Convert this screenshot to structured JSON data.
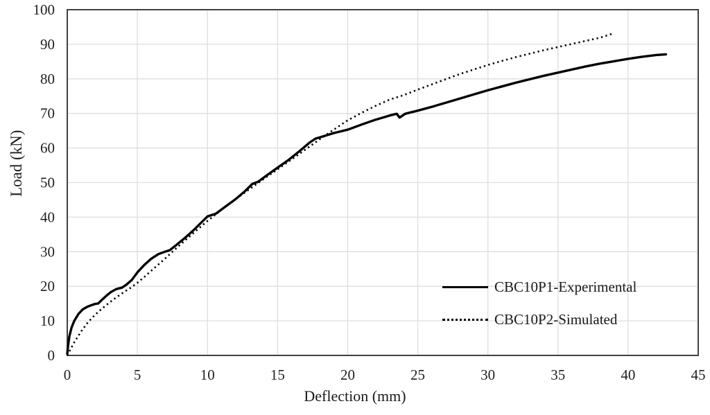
{
  "chart_data": {
    "type": "line",
    "title": "",
    "xlabel": "Deflection (mm)",
    "ylabel": "Load (kN)",
    "xlim": [
      0,
      45
    ],
    "ylim": [
      0,
      100
    ],
    "x_ticks": [
      0,
      5,
      10,
      15,
      20,
      25,
      30,
      35,
      40,
      45
    ],
    "y_ticks": [
      0,
      10,
      20,
      30,
      40,
      50,
      60,
      70,
      80,
      90,
      100
    ],
    "grid": true,
    "legend_position": "inside-lower-right",
    "series": [
      {
        "name": "CBC10P1-Experimental",
        "line": "solid",
        "color": "#000000",
        "points": [
          [
            0,
            0.5
          ],
          [
            0.05,
            2.5
          ],
          [
            0.15,
            5.5
          ],
          [
            0.3,
            8
          ],
          [
            0.5,
            10
          ],
          [
            0.8,
            12
          ],
          [
            1.1,
            13.3
          ],
          [
            1.4,
            14
          ],
          [
            1.7,
            14.5
          ],
          [
            2.0,
            14.9
          ],
          [
            2.2,
            15.0
          ],
          [
            2.5,
            16.2
          ],
          [
            2.8,
            17.3
          ],
          [
            3.1,
            18.3
          ],
          [
            3.5,
            19.2
          ],
          [
            3.9,
            19.6
          ],
          [
            4.2,
            20.4
          ],
          [
            4.6,
            21.8
          ],
          [
            5.0,
            24.0
          ],
          [
            5.5,
            26.2
          ],
          [
            6.0,
            28.0
          ],
          [
            6.5,
            29.3
          ],
          [
            6.9,
            29.9
          ],
          [
            7.3,
            30.4
          ],
          [
            7.8,
            32.0
          ],
          [
            8.4,
            34.0
          ],
          [
            9.0,
            36.2
          ],
          [
            9.6,
            38.6
          ],
          [
            10.0,
            40.2
          ],
          [
            10.6,
            41.0
          ],
          [
            11.2,
            42.8
          ],
          [
            12.0,
            45.2
          ],
          [
            12.7,
            47.6
          ],
          [
            13.2,
            49.6
          ],
          [
            13.6,
            50.2
          ],
          [
            14.2,
            52.0
          ],
          [
            15.0,
            54.3
          ],
          [
            15.8,
            56.6
          ],
          [
            16.6,
            59.2
          ],
          [
            17.3,
            61.6
          ],
          [
            17.7,
            62.7
          ],
          [
            18.2,
            63.3
          ],
          [
            19.0,
            64.3
          ],
          [
            20.0,
            65.3
          ],
          [
            21.0,
            66.8
          ],
          [
            22.0,
            68.2
          ],
          [
            23.0,
            69.4
          ],
          [
            23.5,
            69.9
          ],
          [
            23.7,
            68.8
          ],
          [
            24.1,
            69.9
          ],
          [
            25.0,
            70.8
          ],
          [
            26.0,
            71.9
          ],
          [
            27.0,
            73.1
          ],
          [
            28.0,
            74.3
          ],
          [
            29.0,
            75.5
          ],
          [
            30.0,
            76.7
          ],
          [
            31.0,
            77.8
          ],
          [
            32.0,
            78.9
          ],
          [
            33.0,
            79.9
          ],
          [
            34.0,
            80.9
          ],
          [
            35.0,
            81.8
          ],
          [
            36.0,
            82.7
          ],
          [
            37.0,
            83.6
          ],
          [
            38.0,
            84.4
          ],
          [
            39.0,
            85.1
          ],
          [
            40.0,
            85.8
          ],
          [
            41.0,
            86.4
          ],
          [
            42.0,
            86.9
          ],
          [
            42.7,
            87.1
          ]
        ]
      },
      {
        "name": "CBC10P2-Simulated",
        "line": "dotted",
        "color": "#000000",
        "points": [
          [
            0,
            0
          ],
          [
            0.5,
            3.8
          ],
          [
            1.0,
            7.0
          ],
          [
            1.5,
            9.7
          ],
          [
            2.0,
            11.8
          ],
          [
            2.5,
            13.6
          ],
          [
            3.0,
            15.3
          ],
          [
            3.5,
            16.8
          ],
          [
            4.0,
            18.2
          ],
          [
            4.5,
            19.5
          ],
          [
            5.0,
            21.0
          ],
          [
            5.5,
            22.7
          ],
          [
            6.0,
            24.5
          ],
          [
            6.5,
            26.3
          ],
          [
            7.0,
            28.1
          ],
          [
            7.5,
            30.0
          ],
          [
            8.0,
            31.8
          ],
          [
            9.0,
            35.4
          ],
          [
            10.0,
            38.9
          ],
          [
            11.0,
            42.1
          ],
          [
            12.0,
            45.2
          ],
          [
            13.0,
            48.1
          ],
          [
            14.0,
            51.0
          ],
          [
            15.0,
            53.8
          ],
          [
            16.0,
            56.7
          ],
          [
            17.0,
            59.6
          ],
          [
            18.0,
            62.5
          ],
          [
            19.0,
            65.3
          ],
          [
            20.0,
            68.0
          ],
          [
            21.0,
            70.2
          ],
          [
            22.0,
            72.2
          ],
          [
            23.0,
            74.0
          ],
          [
            24.0,
            75.3
          ],
          [
            25.0,
            76.9
          ],
          [
            26.0,
            78.4
          ],
          [
            27.0,
            79.9
          ],
          [
            28.0,
            81.4
          ],
          [
            29.0,
            82.7
          ],
          [
            30.0,
            84.0
          ],
          [
            31.0,
            85.2
          ],
          [
            32.0,
            86.3
          ],
          [
            33.0,
            87.3
          ],
          [
            34.0,
            88.3
          ],
          [
            35.0,
            89.2
          ],
          [
            36.0,
            90.1
          ],
          [
            37.0,
            91.0
          ],
          [
            38.0,
            91.9
          ],
          [
            39.0,
            93.2
          ]
        ]
      }
    ]
  },
  "colors": {
    "background": "#ffffff",
    "grid": "#dddddd",
    "border": "#404040",
    "series": "#000000",
    "text": "#1a1a1a"
  }
}
